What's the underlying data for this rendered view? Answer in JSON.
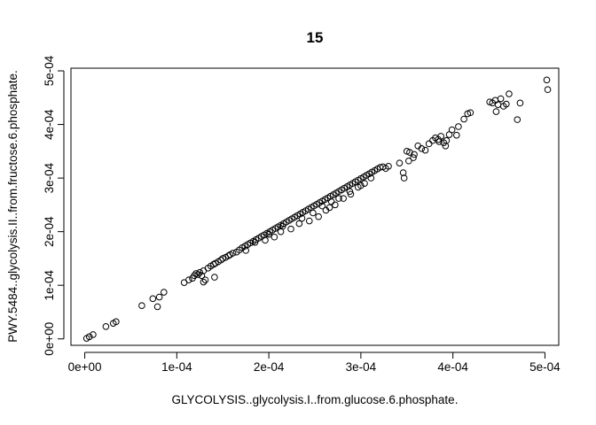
{
  "chart_data": {
    "type": "scatter",
    "title": "15",
    "xlabel": "GLYCOLYSIS..glycolysis.I..from.glucose.6.phosphate.",
    "ylabel": "PWY.5484..glycolysis.II..from.fructose.6.phosphate.",
    "xlim": [
      -1.5e-05,
      0.000515
    ],
    "ylim": [
      -1.2e-05,
      0.000505
    ],
    "x_ticks": [
      0,
      0.0001,
      0.0002,
      0.0003,
      0.0004,
      0.0005
    ],
    "x_tick_labels": [
      "0e+00",
      "1e-04",
      "2e-04",
      "3e-04",
      "4e-04",
      "5e-04"
    ],
    "y_ticks": [
      0,
      0.0001,
      0.0002,
      0.0003,
      0.0004,
      0.0005
    ],
    "y_tick_labels": [
      "0e+00",
      "1e-04",
      "2e-04",
      "3e-04",
      "4e-04",
      "5e-04"
    ],
    "grid": false,
    "legend": "none",
    "x": [
      2e-06,
      5e-06,
      9e-06,
      2.3e-05,
      3.1e-05,
      3.4e-05,
      6.2e-05,
      7.4e-05,
      7.9e-05,
      8.1e-05,
      8.6e-05,
      0.000108,
      0.000113,
      0.000117,
      0.000119,
      0.000121,
      0.000123,
      0.000125,
      0.000127,
      0.000129,
      0.000131,
      0.000134,
      0.000137,
      0.00014,
      0.000142,
      0.000145,
      0.000148,
      0.00015,
      0.000153,
      0.000156,
      0.000158,
      0.000161,
      0.000129,
      0.000141,
      0.000165,
      0.000168,
      0.000171,
      0.000174,
      0.000177,
      0.00018,
      0.000183,
      0.000186,
      0.000189,
      0.000192,
      0.000195,
      0.000198,
      0.000201,
      0.000204,
      0.000207,
      0.00021,
      0.000213,
      0.000216,
      0.000219,
      0.000222,
      0.000225,
      0.000228,
      0.000231,
      0.000234,
      0.000237,
      0.00024,
      0.000243,
      0.000246,
      0.000249,
      0.000252,
      0.000255,
      0.000258,
      0.000261,
      0.000264,
      0.000267,
      0.00027,
      0.000273,
      0.000276,
      0.000279,
      0.000282,
      0.000285,
      0.000288,
      0.000291,
      0.000294,
      0.000297,
      0.0003,
      0.000303,
      0.000306,
      0.000309,
      0.000312,
      0.000315,
      0.000318,
      0.000321,
      0.000324,
      0.000327,
      0.00033,
      0.000175,
      0.000185,
      0.000196,
      0.000206,
      0.000213,
      0.000224,
      0.000233,
      0.000244,
      0.000254,
      0.000262,
      0.000266,
      0.000272,
      0.000281,
      0.000289,
      0.000297,
      0.000304,
      0.000311,
      0.0002,
      0.000215,
      0.000236,
      0.000248,
      0.000258,
      0.000268,
      0.000276,
      0.000288,
      0.0003,
      0.000342,
      0.000346,
      0.00035,
      0.000353,
      0.000358,
      0.000362,
      0.000366,
      0.00037,
      0.000374,
      0.000378,
      0.000381,
      0.000384,
      0.000387,
      0.00039,
      0.000393,
      0.000396,
      0.000347,
      0.000352,
      0.000357,
      0.000385,
      0.000392,
      0.000399,
      0.000404,
      0.000406,
      0.000412,
      0.000416,
      0.000419,
      0.00044,
      0.000443,
      0.000446,
      0.000449,
      0.000452,
      0.000455,
      0.000458,
      0.000461,
      0.000447,
      0.00047,
      0.000473,
      0.000502,
      0.000503
    ],
    "y": [
      1e-06,
      4e-06,
      8e-06,
      2.3e-05,
      2.9e-05,
      3.2e-05,
      6.2e-05,
      7.5e-05,
      6e-05,
      7.8e-05,
      8.7e-05,
      0.000105,
      0.00011,
      0.000113,
      0.000118,
      0.000122,
      0.00012,
      0.000124,
      0.000118,
      0.000127,
      0.00011,
      0.000132,
      0.000136,
      0.000139,
      0.000141,
      0.000144,
      0.000147,
      0.00015,
      0.000152,
      0.000155,
      0.000157,
      0.00016,
      0.000106,
      0.000115,
      0.000162,
      0.000166,
      0.00017,
      0.000173,
      0.000176,
      0.000179,
      0.000182,
      0.000185,
      0.000188,
      0.000191,
      0.000194,
      0.000197,
      0.0002,
      0.000203,
      0.000206,
      0.000209,
      0.000212,
      0.000215,
      0.000218,
      0.000221,
      0.000224,
      0.000227,
      0.00023,
      0.000233,
      0.000236,
      0.000239,
      0.000242,
      0.000245,
      0.000248,
      0.000251,
      0.000254,
      0.000257,
      0.00026,
      0.000263,
      0.000266,
      0.000269,
      0.000272,
      0.000275,
      0.000278,
      0.000281,
      0.000284,
      0.000287,
      0.00029,
      0.000293,
      0.000296,
      0.000299,
      0.000302,
      0.000305,
      0.000308,
      0.000311,
      0.000314,
      0.000317,
      0.00032,
      0.000321,
      0.000318,
      0.000322,
      0.000165,
      0.00018,
      0.000184,
      0.00019,
      0.0002,
      0.000205,
      0.000215,
      0.00022,
      0.000228,
      0.00024,
      0.000245,
      0.00025,
      0.000262,
      0.00027,
      0.000283,
      0.00029,
      0.0003,
      0.000195,
      0.00021,
      0.000225,
      0.000235,
      0.000248,
      0.000256,
      0.000262,
      0.000275,
      0.000286,
      0.000328,
      0.00031,
      0.00035,
      0.000348,
      0.000344,
      0.00036,
      0.000355,
      0.000352,
      0.000364,
      0.00037,
      0.000375,
      0.000372,
      0.000378,
      0.000366,
      0.00037,
      0.000381,
      0.0003,
      0.000332,
      0.000338,
      0.000368,
      0.00036,
      0.00039,
      0.00038,
      0.000396,
      0.00041,
      0.00042,
      0.000422,
      0.000442,
      0.00044,
      0.000445,
      0.000437,
      0.000448,
      0.000434,
      0.000438,
      0.000457,
      0.000424,
      0.000409,
      0.00044,
      0.000483,
      0.000465
    ]
  }
}
